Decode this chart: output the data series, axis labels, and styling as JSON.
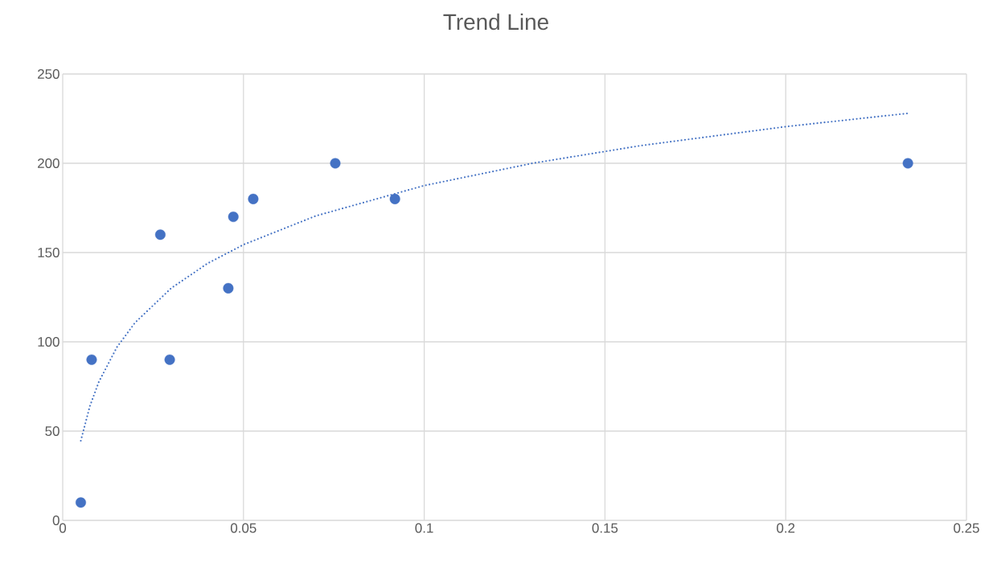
{
  "chart_data": {
    "type": "scatter",
    "title": "Trend Line",
    "series": [
      {
        "color": "#4472c4",
        "marker": "circle",
        "x": [
          0.005,
          0.008,
          0.027,
          0.0296,
          0.0458,
          0.0472,
          0.0527,
          0.0754,
          0.0919,
          0.2338
        ],
        "values": [
          10,
          90,
          160,
          90,
          130,
          170,
          180,
          200,
          180,
          200
        ]
      },
      {
        "type": "line",
        "color": "#4472c4",
        "marker": "none",
        "line_style": "dotted",
        "x": [
          0.005,
          0.0075,
          0.01,
          0.015,
          0.02,
          0.03,
          0.04,
          0.05,
          0.07,
          0.1,
          0.13,
          0.16,
          0.2,
          0.234
        ],
        "values": [
          44.6,
          63.9,
          77.6,
          97.0,
          110.7,
          130.0,
          143.8,
          154.4,
          170.5,
          187.5,
          200.0,
          209.9,
          220.5,
          228.0
        ]
      }
    ],
    "xlim": [
      0,
      0.25
    ],
    "xticks": [
      0,
      0.05,
      0.1,
      0.15,
      0.2,
      0.25
    ],
    "ylim": [
      0,
      250
    ],
    "yticks": [
      0,
      50,
      100,
      150,
      200,
      250
    ],
    "grid": true
  }
}
